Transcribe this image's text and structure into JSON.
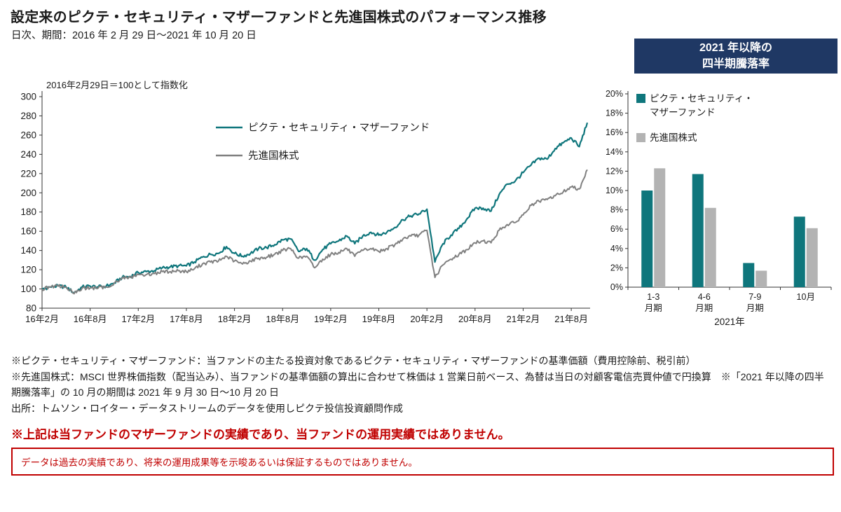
{
  "header": {
    "title": "設定来のピクテ・セキュリティ・マザーファンドと先進国株式のパフォーマンス推移",
    "subtitle": "日次、期間：2016 年 2 月 29 日～2021 年 10 月 20 日"
  },
  "quarterly_box": {
    "line1": "2021 年以降の",
    "line2": "四半期騰落率"
  },
  "chart_data": [
    {
      "type": "line",
      "note": "2016年2月29日＝100として指数化",
      "x_tick_labels": [
        "16年2月",
        "16年8月",
        "17年2月",
        "17年8月",
        "18年2月",
        "18年8月",
        "19年2月",
        "19年8月",
        "20年2月",
        "20年8月",
        "21年2月",
        "21年8月"
      ],
      "x_unit": "monthly index points, Feb 2016 = 0 through Oct 2021 = 68",
      "ylim": [
        80,
        300
      ],
      "ytick_step": 20,
      "legend_position": "inside-top-center",
      "grid": false,
      "series": [
        {
          "name": "ピクテ・セキュリティ・マザーファンド",
          "color": "#0f767c",
          "values": [
            100,
            102,
            103,
            102,
            96,
            102,
            103,
            102,
            103,
            106,
            112,
            113,
            117,
            118,
            119,
            122,
            123,
            124,
            124,
            128,
            133,
            136,
            137,
            144,
            137,
            134,
            137,
            142,
            143,
            146,
            151,
            152,
            139,
            142,
            130,
            141,
            147,
            150,
            155,
            147,
            155,
            159,
            156,
            159,
            164,
            172,
            176,
            178,
            183,
            128,
            147,
            156,
            163,
            173,
            184,
            184,
            181,
            198,
            209,
            212,
            221,
            229,
            236,
            235,
            246,
            252,
            257,
            248,
            273
          ]
        },
        {
          "name": "先進国株式",
          "color": "#808080",
          "values": [
            100,
            102,
            103,
            102,
            95,
            101,
            101,
            101,
            102,
            106,
            111,
            112,
            115,
            115,
            116,
            118,
            118,
            119,
            118,
            121,
            126,
            128,
            129,
            134,
            129,
            126,
            129,
            132,
            133,
            136,
            140,
            142,
            132,
            134,
            122,
            131,
            136,
            138,
            142,
            134,
            140,
            142,
            139,
            142,
            146,
            152,
            155,
            156,
            161,
            112,
            125,
            131,
            136,
            141,
            148,
            150,
            148,
            161,
            167,
            169,
            177,
            187,
            191,
            193,
            197,
            201,
            206,
            204,
            224
          ]
        }
      ]
    },
    {
      "type": "bar",
      "title": "2021 年以降の四半期騰落率",
      "categories": [
        "1-3月期",
        "4-6月期",
        "7-9月期",
        "10月"
      ],
      "category_lines": [
        [
          "1-3",
          "月期"
        ],
        [
          "4-6",
          "月期"
        ],
        [
          "7-9",
          "月期"
        ],
        [
          "10月"
        ]
      ],
      "xlabel": "2021年",
      "ylim": [
        0,
        20
      ],
      "ytick_step": 2,
      "ytick_suffix": "%",
      "grid": false,
      "legend_position": "inside-top-left",
      "series": [
        {
          "name": "ピクテ・セキュリティ・マザーファンド",
          "name_lines": [
            "ピクテ・セキュリティ・",
            "マザーファンド"
          ],
          "color": "#0f767c",
          "values": [
            10.0,
            11.7,
            2.5,
            7.3
          ]
        },
        {
          "name": "先進国株式",
          "name_lines": [
            "先進国株式"
          ],
          "color": "#b3b3b3",
          "values": [
            12.3,
            8.2,
            1.7,
            6.1
          ]
        }
      ]
    }
  ],
  "footnotes": [
    "※ピクテ・セキュリティ・マザーファンド：当ファンドの主たる投資対象であるピクテ・セキュリティ・マザーファンドの基準価額（費用控除前、税引前）",
    "※先進国株式：MSCI 世界株価指数（配当込み）、当ファンドの基準価額の算出に合わせて株価は 1 営業日前ベース、為替は当日の対顧客電信売買仲値で円換算　※「2021 年以降の四半期騰落率」の 10 月の期間は 2021 年 9 月 30 日～10 月 20 日",
    "出所：トムソン・ロイター・データストリームのデータを使用しピクテ投信投資顧問作成"
  ],
  "warning": "※上記は当ファンドのマザーファンドの実績であり、当ファンドの運用実績ではありません。",
  "disclaimer": "データは過去の実績であり、将来の運用成果等を示唆あるいは保証するものではありません。",
  "colors": {
    "fund_teal": "#0f767c",
    "index_gray_line": "#808080",
    "index_gray_bar": "#b3b3b3",
    "header_navy": "#1f3864",
    "warning_red": "#c00000",
    "text": "#1a1a1a"
  }
}
